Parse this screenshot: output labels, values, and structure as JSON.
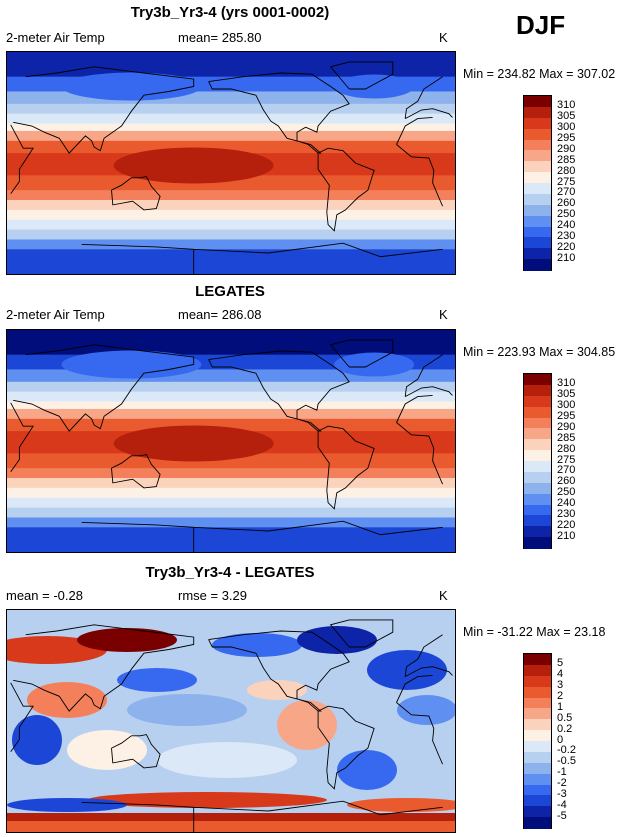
{
  "season": "DJF",
  "chart_data": [
    {
      "type": "heatmap",
      "title": "Try3b_Yr3-4 (yrs 0001-0002)",
      "left_label": "2-meter Air Temp",
      "center_label": "mean= 285.80",
      "units": "K",
      "minmax": "Min = 234.82 Max = 307.02",
      "min": 234.82,
      "max": 307.02,
      "mean": 285.8,
      "levels": [
        "310",
        "305",
        "300",
        "295",
        "290",
        "285",
        "280",
        "275",
        "270",
        "260",
        "250",
        "240",
        "230",
        "220",
        "210"
      ],
      "colors": [
        "#7a0000",
        "#b5200c",
        "#d8391a",
        "#ea5a2f",
        "#f3805a",
        "#f7a788",
        "#fbd3bd",
        "#fdf1e6",
        "#dbe8f7",
        "#b7d0f0",
        "#8eb3ec",
        "#5f8ff0",
        "#3669f0",
        "#1c47d6",
        "#0d23a8",
        "#000d7a"
      ],
      "field": "absolute"
    },
    {
      "type": "heatmap",
      "title": "LEGATES",
      "left_label": "2-meter Air Temp",
      "center_label": "mean= 286.08",
      "units": "K",
      "minmax": "Min = 223.93 Max = 304.85",
      "min": 223.93,
      "max": 304.85,
      "mean": 286.08,
      "levels": [
        "310",
        "305",
        "300",
        "295",
        "290",
        "285",
        "280",
        "275",
        "270",
        "260",
        "250",
        "240",
        "230",
        "220",
        "210"
      ],
      "colors": [
        "#7a0000",
        "#b5200c",
        "#d8391a",
        "#ea5a2f",
        "#f3805a",
        "#f7a788",
        "#fbd3bd",
        "#fdf1e6",
        "#dbe8f7",
        "#b7d0f0",
        "#8eb3ec",
        "#5f8ff0",
        "#3669f0",
        "#1c47d6",
        "#0d23a8",
        "#000d7a"
      ],
      "field": "absolute"
    },
    {
      "type": "heatmap",
      "title": "Try3b_Yr3-4 - LEGATES",
      "left_label": "mean =  -0.28",
      "center_label": "rmse =    3.29",
      "units": "K",
      "minmax": "Min = -31.22 Max =  23.18",
      "min": -31.22,
      "max": 23.18,
      "mean": -0.28,
      "rmse": 3.29,
      "levels": [
        "5",
        "4",
        "3",
        "2",
        "1",
        "0.5",
        "0.2",
        "0",
        "-0.2",
        "-0.5",
        "-1",
        "-2",
        "-3",
        "-4",
        "-5"
      ],
      "colors": [
        "#7a0000",
        "#b5200c",
        "#d8391a",
        "#ea5a2f",
        "#f3805a",
        "#f7a788",
        "#fbd3bd",
        "#fdf1e6",
        "#dbe8f7",
        "#b7d0f0",
        "#8eb3ec",
        "#5f8ff0",
        "#3669f0",
        "#1c47d6",
        "#0d23a8",
        "#000d7a"
      ],
      "field": "difference"
    }
  ]
}
